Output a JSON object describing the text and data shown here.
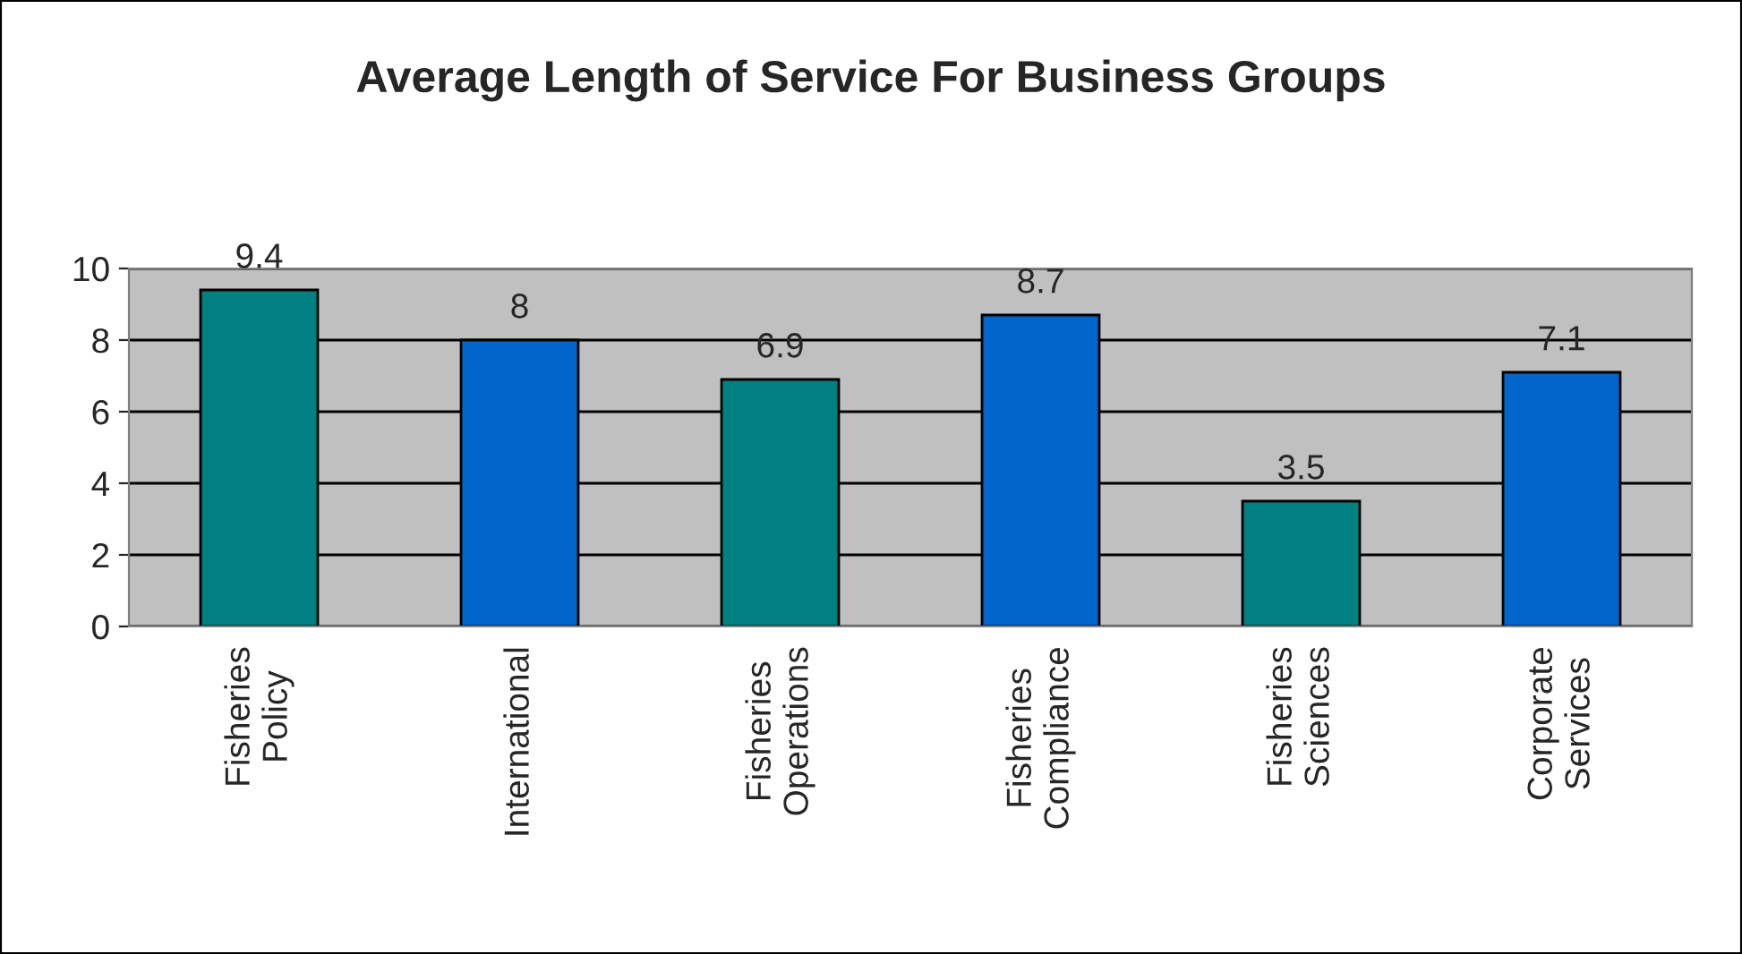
{
  "chart_data": {
    "type": "bar",
    "title": "Average Length of Service For Business Groups",
    "categories": [
      "Fisheries\nPolicy",
      "International",
      "Fisheries\nOperations",
      "Fisheries\nCompliance",
      "Fisheries\nSciences",
      "Corporate\nServices"
    ],
    "values": [
      9.4,
      8,
      6.9,
      8.7,
      3.5,
      7.1
    ],
    "colors": [
      "#008080",
      "#0066cc",
      "#008080",
      "#0066cc",
      "#008080",
      "#0066cc"
    ],
    "ylim": [
      0,
      10
    ],
    "yticks": [
      0,
      2,
      4,
      6,
      8,
      10
    ],
    "grid": "y",
    "data_labels": true
  }
}
